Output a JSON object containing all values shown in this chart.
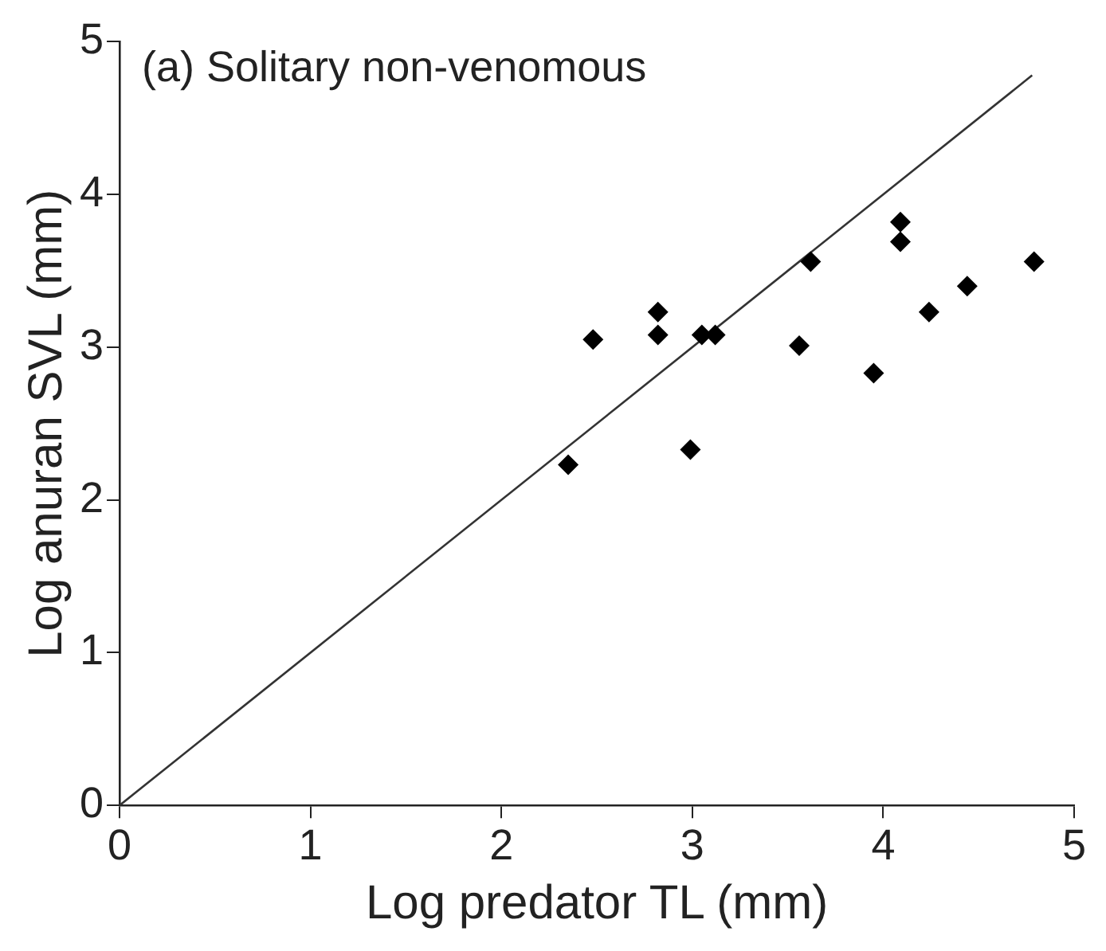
{
  "chart_data": {
    "type": "scatter",
    "title": "(a) Solitary non-venomous",
    "xlabel": "Log predator TL (mm)",
    "ylabel": "Log anuran SVL (mm)",
    "x": [
      2.35,
      2.48,
      2.82,
      2.82,
      2.99,
      3.05,
      3.12,
      3.56,
      3.62,
      3.95,
      4.09,
      4.09,
      4.24,
      4.44,
      4.79
    ],
    "series": [
      {
        "color": "#000000",
        "values": [
          2.23,
          3.05,
          3.23,
          3.08,
          2.33,
          3.08,
          3.08,
          3.01,
          3.56,
          2.83,
          3.82,
          3.69,
          3.23,
          3.4,
          3.56
        ]
      },
      {
        "type": "line",
        "color": "#333333",
        "marker": "none",
        "x": [
          0,
          4.78
        ],
        "values": [
          0,
          4.78
        ]
      }
    ],
    "xlim": [
      0,
      5
    ],
    "xticks": [
      0,
      1,
      2,
      3,
      4,
      5
    ],
    "ylim": [
      0,
      5
    ],
    "yticks": [
      0,
      1,
      2,
      3,
      4,
      5
    ],
    "grid": false,
    "legend": false,
    "marker": "diamond"
  }
}
